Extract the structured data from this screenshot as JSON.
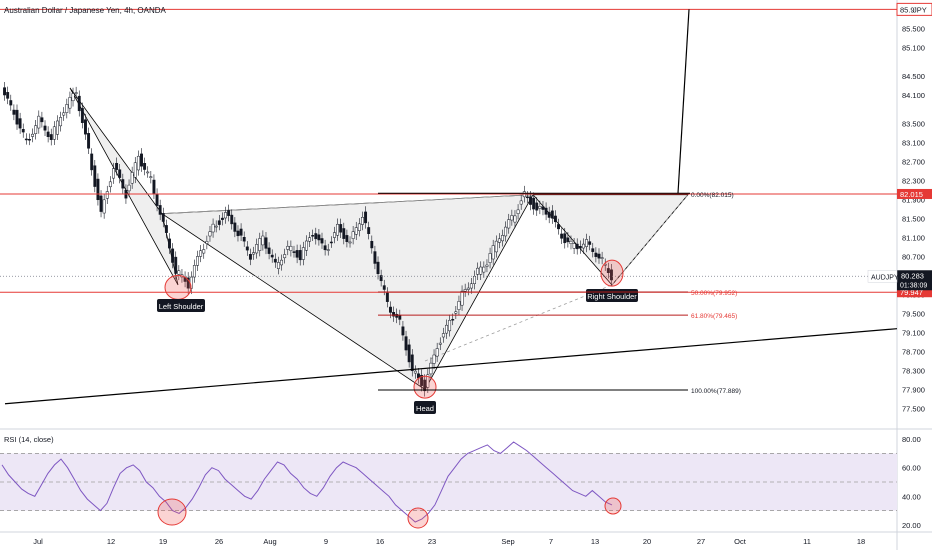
{
  "header": {
    "title": "Australian Dollar / Japanese Yen, 4h, OANDA"
  },
  "chart_data": [
    {
      "type": "candlestick",
      "title": "Australian Dollar / Japanese Yen, 4h, OANDA",
      "symbol": "AUDJPY",
      "ylim": [
        77.3,
        85.95
      ],
      "y_ticks": [
        "77.500",
        "77.900",
        "78.300",
        "78.700",
        "79.100",
        "79.500",
        "79.900",
        "80.300",
        "80.700",
        "81.100",
        "81.500",
        "81.900",
        "82.300",
        "82.700",
        "83.100",
        "83.500",
        "84.100",
        "84.500",
        "85.100",
        "85.500",
        "85.900"
      ],
      "x_ticks": [
        "Jul",
        "12",
        "19",
        "26",
        "Aug",
        "9",
        "16",
        "23",
        "Sep",
        "7",
        "13",
        "20",
        "27",
        "Oct",
        "11",
        "18"
      ],
      "price_series": [
        [
          "Jul",
          84.2
        ],
        [
          "Jul",
          83.7
        ],
        [
          "Jul",
          83.1
        ],
        [
          "Jul",
          83.6
        ],
        [
          "Jul",
          83.2
        ],
        [
          "Jul",
          83.8
        ],
        [
          "Jul",
          84.15
        ],
        [
          "12",
          82.9
        ],
        [
          "12",
          81.6
        ],
        [
          "12",
          82.6
        ],
        [
          "12",
          82.0
        ],
        [
          "12",
          82.8
        ],
        [
          "12",
          82.3
        ],
        [
          "19",
          81.4
        ],
        [
          "19",
          80.4
        ],
        [
          "19",
          80.1
        ],
        [
          "19",
          80.8
        ],
        [
          "19",
          81.3
        ],
        [
          "19",
          81.6
        ],
        [
          "26",
          81.2
        ],
        [
          "26",
          80.7
        ],
        [
          "26",
          81.1
        ],
        [
          "26",
          80.5
        ],
        [
          "26",
          80.9
        ],
        [
          "Aug",
          80.7
        ],
        [
          "Aug",
          81.2
        ],
        [
          "Aug",
          80.8
        ],
        [
          "9",
          81.3
        ],
        [
          "9",
          81.0
        ],
        [
          "9",
          81.6
        ],
        [
          "16",
          80.6
        ],
        [
          "16",
          79.7
        ],
        [
          "16",
          79.3
        ],
        [
          "16",
          78.3
        ],
        [
          "23",
          77.95
        ],
        [
          "23",
          78.8
        ],
        [
          "23",
          79.3
        ],
        [
          "23",
          79.9
        ],
        [
          "23",
          80.3
        ],
        [
          "Sep",
          80.6
        ],
        [
          "Sep",
          81.1
        ],
        [
          "Sep",
          81.5
        ],
        [
          "7",
          82.0
        ],
        [
          "7",
          81.7
        ],
        [
          "7",
          81.6
        ],
        [
          "7",
          81.1
        ],
        [
          "13",
          80.9
        ],
        [
          "13",
          81.0
        ],
        [
          "13",
          80.7
        ],
        [
          "13",
          80.283
        ]
      ],
      "annotations": {
        "left_shoulder": "Left Shoulder",
        "head": "Head",
        "right_shoulder": "Right Shoulder"
      },
      "fib_levels": [
        {
          "label": "0.00%(82.015)",
          "value": 82.015
        },
        {
          "label": "50.00%(79.952)",
          "value": 79.952
        },
        {
          "label": "61.80%(79.465)",
          "value": 79.465
        },
        {
          "label": "100.00%(77.889)",
          "value": 77.889
        }
      ],
      "price_tags": [
        {
          "text": "85.9",
          "value": 85.9,
          "style": "top-red"
        },
        {
          "text": "JPY",
          "value": 85.9,
          "style": "top-red-suffix"
        },
        {
          "text": "82.015",
          "value": 82.015,
          "style": "red"
        },
        {
          "text": "AUDJPY",
          "value": 80.283,
          "style": "white-label"
        },
        {
          "text": "80.283",
          "value": 80.283,
          "style": "dark"
        },
        {
          "text": "01:38:09",
          "value": 80.283,
          "style": "dark-sub"
        },
        {
          "text": "79.947",
          "value": 79.947,
          "style": "red"
        }
      ],
      "horizontal_lines": [
        {
          "value": 85.9,
          "color": "#e53935"
        },
        {
          "value": 82.015,
          "color": "#e53935"
        },
        {
          "value": 79.947,
          "color": "#e53935"
        }
      ],
      "colors": {
        "up": "#26a69a",
        "candle": "#131722",
        "line_red": "#e53935",
        "triangle_fill": "#e0e0e0"
      }
    },
    {
      "type": "line",
      "title": "RSI (14, close)",
      "ylim": [
        15,
        85
      ],
      "y_ticks": [
        "80.00",
        "60.00",
        "40.00",
        "20.00"
      ],
      "bands": {
        "upper": 70,
        "middle": 50,
        "lower": 30
      },
      "values": [
        62,
        55,
        50,
        45,
        42,
        40,
        48,
        56,
        62,
        66,
        60,
        52,
        44,
        38,
        34,
        30,
        35,
        46,
        56,
        60,
        62,
        58,
        50,
        46,
        40,
        36,
        30,
        28,
        32,
        38,
        46,
        55,
        60,
        58,
        52,
        48,
        44,
        40,
        38,
        44,
        52,
        58,
        64,
        62,
        56,
        52,
        46,
        42,
        40,
        46,
        54,
        60,
        64,
        62,
        60,
        56,
        52,
        48,
        44,
        40,
        34,
        30,
        26,
        22,
        24,
        28,
        34,
        44,
        54,
        60,
        66,
        70,
        72,
        74,
        76,
        72,
        70,
        74,
        78,
        75,
        72,
        68,
        64,
        60,
        56,
        52,
        48,
        44,
        42,
        40,
        44,
        40,
        36,
        34
      ],
      "color": "#7e57c2",
      "band_fill": "#ede7f6"
    }
  ]
}
